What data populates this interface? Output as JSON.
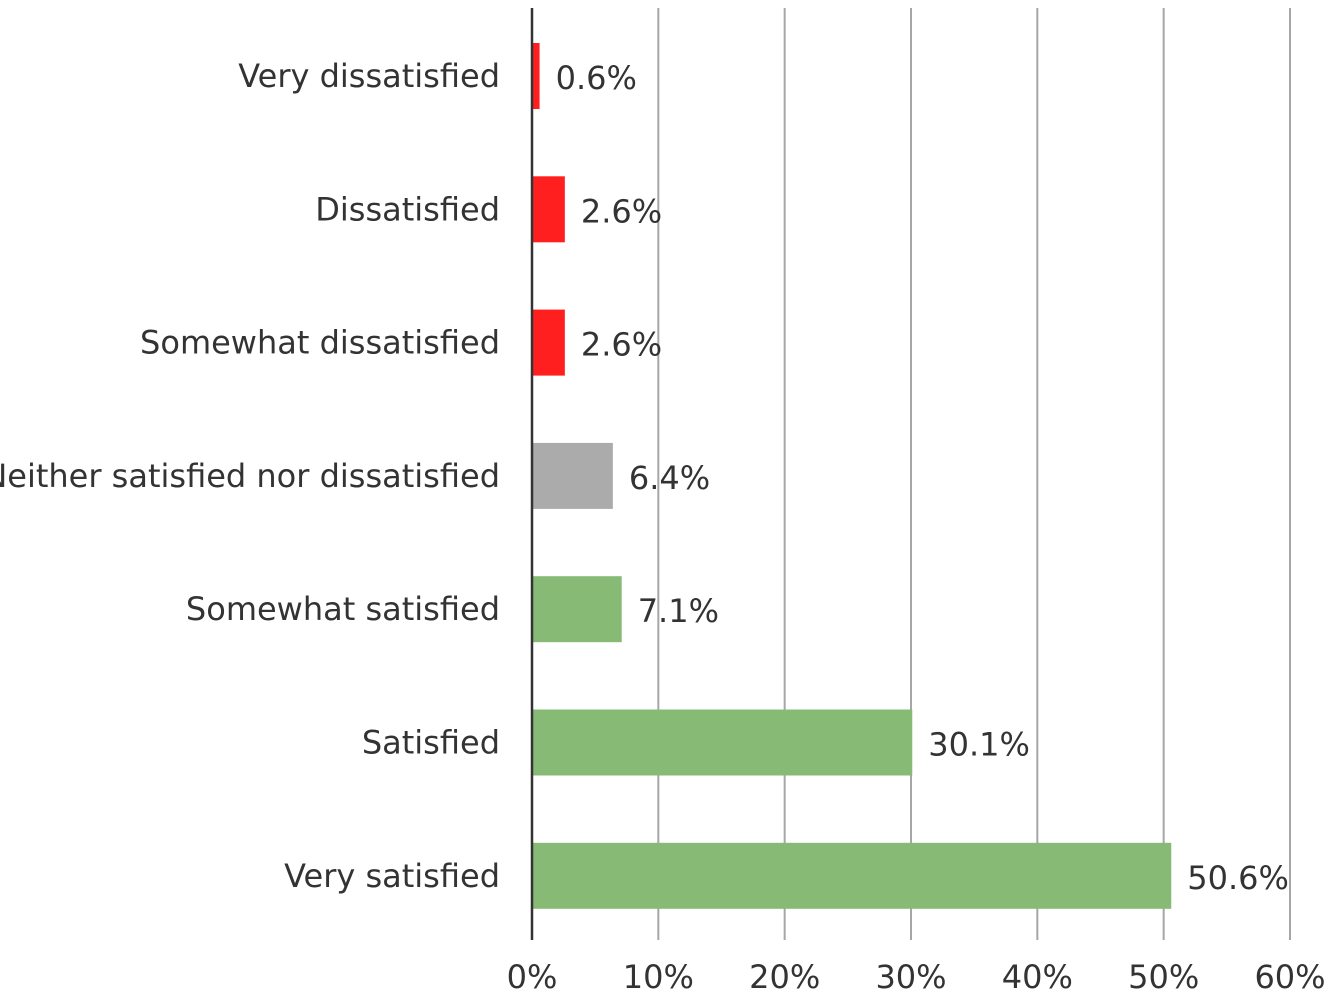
{
  "chart_data": {
    "type": "bar",
    "orientation": "horizontal",
    "title": "",
    "xlabel": "",
    "ylabel": "",
    "categories": [
      "Very dissatisfied",
      "Dissatisfied",
      "Somewhat dissatisfied",
      "Neither satisfied nor dissatisfied",
      "Somewhat satisfied",
      "Satisfied",
      "Very satisfied"
    ],
    "values": [
      0.6,
      2.6,
      2.6,
      6.4,
      7.1,
      30.1,
      50.6
    ],
    "data_labels": [
      "0.6%",
      "2.6%",
      "2.6%",
      "6.4%",
      "7.1%",
      "30.1%",
      "50.6%"
    ],
    "bar_colors": [
      "#ff1f1f",
      "#ff1f1f",
      "#ff1f1f",
      "#ababab",
      "#87bb75",
      "#87bb75",
      "#87bb75"
    ],
    "xlim": [
      0,
      60
    ],
    "x_ticks": [
      0,
      10,
      20,
      30,
      40,
      50,
      60
    ],
    "x_tick_labels": [
      "0%",
      "10%",
      "20%",
      "30%",
      "40%",
      "50%",
      "60%"
    ],
    "grid": "vertical",
    "legend": "none",
    "colors": {
      "gridline": "#a6a6a6",
      "axis": "#333333",
      "text": "#333333"
    }
  }
}
